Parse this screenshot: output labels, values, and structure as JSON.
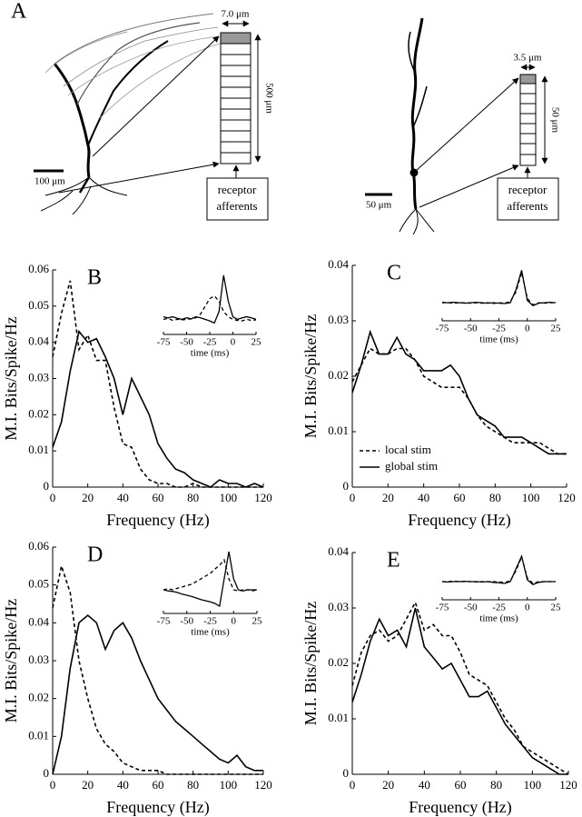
{
  "diagram": {
    "label": "A",
    "left": {
      "width_label": "7.0 μm",
      "height_label": "500 μm",
      "scale_label": "100 μm",
      "box_label": [
        "receptor",
        "afferents"
      ]
    },
    "right": {
      "width_label": "3.5 μm",
      "height_label": "50 μm",
      "scale_label": "50 μm",
      "box_label": [
        "receptor",
        "afferents"
      ]
    }
  },
  "chart_data": [
    {
      "type": "line",
      "label": "B",
      "xlabel": "Frequency (Hz)",
      "ylabel": "M.I. Bits/Spike/Hz",
      "x": [
        0,
        5,
        10,
        15,
        20,
        25,
        30,
        35,
        40,
        45,
        50,
        55,
        60,
        65,
        70,
        75,
        80,
        85,
        90,
        95,
        100,
        105,
        110,
        115,
        120
      ],
      "xlim": [
        0,
        120
      ],
      "xticks": [
        0,
        20,
        40,
        60,
        80,
        100,
        120
      ],
      "ylim": [
        0,
        0.06
      ],
      "yticks": [
        0,
        0.01,
        0.02,
        0.03,
        0.04,
        0.05,
        0.06
      ],
      "series": [
        {
          "style": "dashed",
          "color": "#000000",
          "values": [
            0.036,
            0.048,
            0.057,
            0.038,
            0.042,
            0.035,
            0.035,
            0.022,
            0.012,
            0.011,
            0.005,
            0.002,
            0.001,
            0.001,
            0,
            0,
            0.001,
            0,
            0,
            0,
            0,
            0,
            0,
            0,
            0
          ]
        },
        {
          "style": "solid",
          "color": "#000000",
          "values": [
            0.011,
            0.018,
            0.032,
            0.043,
            0.04,
            0.041,
            0.036,
            0.03,
            0.02,
            0.03,
            0.025,
            0.02,
            0.012,
            0.008,
            0.005,
            0.004,
            0.002,
            0.001,
            0,
            0.002,
            0.001,
            0.001,
            0,
            0.001,
            0
          ]
        }
      ],
      "inset": {
        "type": "line",
        "xlabel": "time (ms)",
        "x": [
          -75,
          -70,
          -65,
          -60,
          -55,
          -50,
          -45,
          -40,
          -35,
          -30,
          -25,
          -20,
          -15,
          -10,
          -5,
          0,
          5,
          10,
          15,
          20,
          25
        ],
        "xlim": [
          -75,
          25
        ],
        "xticks": [
          -75,
          -50,
          -25,
          0,
          25
        ],
        "ylim": [
          0,
          1.05
        ],
        "series": [
          {
            "style": "dashed",
            "color": "#000000",
            "values": [
              0.15,
              0.17,
              0.13,
              0.15,
              0.14,
              0.15,
              0.16,
              0.18,
              0.25,
              0.4,
              0.55,
              0.6,
              0.5,
              0.3,
              0.2,
              0.15,
              0.13,
              0.12,
              0.15,
              0.13,
              0.14
            ]
          },
          {
            "style": "solid",
            "color": "#000000",
            "values": [
              0.2,
              0.18,
              0.2,
              0.17,
              0.15,
              0.18,
              0.16,
              0.2,
              0.18,
              0.15,
              0.12,
              0.08,
              0.3,
              1.0,
              0.5,
              0.2,
              0.15,
              0.18,
              0.2,
              0.18,
              0.15
            ]
          }
        ]
      }
    },
    {
      "type": "line",
      "label": "C",
      "xlabel": "Frequency (Hz)",
      "ylabel": "M.I. Bits/Spike/Hz",
      "legend": true,
      "x": [
        0,
        5,
        10,
        15,
        20,
        25,
        30,
        35,
        40,
        45,
        50,
        55,
        60,
        65,
        70,
        75,
        80,
        85,
        90,
        95,
        100,
        105,
        110,
        115,
        120
      ],
      "xlim": [
        0,
        120
      ],
      "xticks": [
        0,
        20,
        40,
        60,
        80,
        100,
        120
      ],
      "ylim": [
        0,
        0.04
      ],
      "yticks": [
        0,
        0.01,
        0.02,
        0.03,
        0.04
      ],
      "series": [
        {
          "name": "local stim",
          "style": "dashed",
          "color": "#000000",
          "values": [
            0.019,
            0.022,
            0.025,
            0.024,
            0.024,
            0.025,
            0.025,
            0.023,
            0.02,
            0.019,
            0.018,
            0.018,
            0.018,
            0.016,
            0.013,
            0.011,
            0.01,
            0.009,
            0.008,
            0.008,
            0.008,
            0.008,
            0.007,
            0.006,
            0.006
          ]
        },
        {
          "name": "global stim",
          "style": "solid",
          "color": "#000000",
          "values": [
            0.017,
            0.022,
            0.028,
            0.024,
            0.024,
            0.027,
            0.024,
            0.023,
            0.021,
            0.021,
            0.021,
            0.022,
            0.02,
            0.016,
            0.013,
            0.012,
            0.011,
            0.009,
            0.009,
            0.009,
            0.008,
            0.007,
            0.006,
            0.006,
            0.006
          ]
        }
      ],
      "inset": {
        "type": "line",
        "xlabel": "time (ms)",
        "x": [
          -75,
          -70,
          -65,
          -60,
          -55,
          -50,
          -45,
          -40,
          -35,
          -30,
          -25,
          -20,
          -15,
          -10,
          -5,
          0,
          5,
          10,
          15,
          20,
          25
        ],
        "xlim": [
          -75,
          25
        ],
        "xticks": [
          -75,
          -50,
          -25,
          0,
          25
        ],
        "ylim": [
          0,
          1.05
        ],
        "series": [
          {
            "style": "dashed",
            "color": "#000000",
            "values": [
              0.25,
              0.25,
              0.24,
              0.25,
              0.25,
              0.24,
              0.25,
              0.24,
              0.25,
              0.23,
              0.25,
              0.24,
              0.28,
              0.5,
              0.95,
              0.35,
              0.2,
              0.25,
              0.24,
              0.25,
              0.25
            ]
          },
          {
            "style": "solid",
            "color": "#000000",
            "values": [
              0.26,
              0.25,
              0.26,
              0.25,
              0.24,
              0.25,
              0.26,
              0.25,
              0.24,
              0.25,
              0.24,
              0.23,
              0.25,
              0.55,
              1.0,
              0.3,
              0.18,
              0.24,
              0.25,
              0.26,
              0.25
            ]
          }
        ]
      }
    },
    {
      "type": "line",
      "label": "D",
      "xlabel": "Frequency (Hz)",
      "ylabel": "M.I. Bits/Spike/Hz",
      "x": [
        0,
        5,
        10,
        15,
        20,
        25,
        30,
        35,
        40,
        45,
        50,
        55,
        60,
        65,
        70,
        75,
        80,
        85,
        90,
        95,
        100,
        105,
        110,
        115,
        120
      ],
      "xlim": [
        0,
        120
      ],
      "xticks": [
        0,
        20,
        40,
        60,
        80,
        100,
        120
      ],
      "ylim": [
        0,
        0.06
      ],
      "yticks": [
        0,
        0.01,
        0.02,
        0.03,
        0.04,
        0.05,
        0.06
      ],
      "series": [
        {
          "style": "dashed",
          "color": "#000000",
          "values": [
            0.044,
            0.055,
            0.048,
            0.03,
            0.02,
            0.012,
            0.008,
            0.006,
            0.003,
            0.002,
            0.001,
            0.001,
            0.001,
            0,
            0,
            0,
            0,
            0,
            0,
            0,
            0,
            0,
            0,
            0,
            0
          ]
        },
        {
          "style": "solid",
          "color": "#000000",
          "values": [
            0,
            0.01,
            0.028,
            0.04,
            0.042,
            0.04,
            0.033,
            0.038,
            0.04,
            0.036,
            0.03,
            0.025,
            0.02,
            0.017,
            0.014,
            0.012,
            0.01,
            0.008,
            0.006,
            0.004,
            0.003,
            0.005,
            0.002,
            0.001,
            0.001
          ]
        }
      ],
      "inset": {
        "type": "line",
        "xlabel": "time (ms)",
        "x": [
          -75,
          -70,
          -65,
          -60,
          -55,
          -50,
          -45,
          -40,
          -35,
          -30,
          -25,
          -20,
          -15,
          -10,
          -5,
          0,
          5,
          10,
          15,
          20,
          25
        ],
        "xlim": [
          -75,
          25
        ],
        "xticks": [
          -75,
          -50,
          -25,
          0,
          25
        ],
        "ylim": [
          0,
          1.05
        ],
        "series": [
          {
            "style": "dashed",
            "color": "#000000",
            "values": [
              0.3,
              0.32,
              0.3,
              0.33,
              0.35,
              0.38,
              0.4,
              0.45,
              0.5,
              0.55,
              0.6,
              0.68,
              0.75,
              0.85,
              0.5,
              0.3,
              0.28,
              0.3,
              0.3,
              0.28,
              0.3
            ]
          },
          {
            "style": "solid",
            "color": "#000000",
            "values": [
              0.3,
              0.28,
              0.27,
              0.25,
              0.22,
              0.2,
              0.18,
              0.15,
              0.12,
              0.1,
              0.08,
              0.05,
              0,
              0.5,
              1.0,
              0.5,
              0.3,
              0.28,
              0.3,
              0.3,
              0.3
            ]
          }
        ]
      }
    },
    {
      "type": "line",
      "label": "E",
      "xlabel": "Frequency (Hz)",
      "ylabel": "M.I. Bits/Spike/Hz",
      "x": [
        0,
        5,
        10,
        15,
        20,
        25,
        30,
        35,
        40,
        45,
        50,
        55,
        60,
        65,
        70,
        75,
        80,
        85,
        90,
        95,
        100,
        105,
        110,
        115,
        120
      ],
      "xlim": [
        0,
        120
      ],
      "xticks": [
        0,
        20,
        40,
        60,
        80,
        100,
        120
      ],
      "ylim": [
        0,
        0.04
      ],
      "yticks": [
        0,
        0.01,
        0.02,
        0.03,
        0.04
      ],
      "series": [
        {
          "style": "dashed",
          "color": "#000000",
          "values": [
            0.016,
            0.022,
            0.025,
            0.026,
            0.024,
            0.025,
            0.028,
            0.031,
            0.026,
            0.027,
            0.025,
            0.025,
            0.022,
            0.018,
            0.017,
            0.016,
            0.013,
            0.01,
            0.008,
            0.005,
            0.004,
            0.003,
            0.002,
            0.001,
            0
          ]
        },
        {
          "style": "solid",
          "color": "#000000",
          "values": [
            0.013,
            0.018,
            0.024,
            0.028,
            0.025,
            0.026,
            0.023,
            0.03,
            0.023,
            0.021,
            0.019,
            0.02,
            0.017,
            0.014,
            0.014,
            0.015,
            0.012,
            0.009,
            0.007,
            0.005,
            0.003,
            0.002,
            0.001,
            0,
            0
          ]
        }
      ],
      "inset": {
        "type": "line",
        "xlabel": "time (ms)",
        "x": [
          -75,
          -70,
          -65,
          -60,
          -55,
          -50,
          -45,
          -40,
          -35,
          -30,
          -25,
          -20,
          -15,
          -10,
          -5,
          0,
          5,
          10,
          15,
          20,
          25
        ],
        "xlim": [
          -75,
          25
        ],
        "xticks": [
          -75,
          -50,
          -25,
          0,
          25
        ],
        "ylim": [
          0,
          1.05
        ],
        "series": [
          {
            "style": "dashed",
            "color": "#000000",
            "values": [
              0.3,
              0.3,
              0.31,
              0.3,
              0.3,
              0.3,
              0.29,
              0.3,
              0.3,
              0.3,
              0.29,
              0.28,
              0.32,
              0.6,
              0.98,
              0.4,
              0.25,
              0.3,
              0.3,
              0.3,
              0.3
            ]
          },
          {
            "style": "solid",
            "color": "#000000",
            "values": [
              0.3,
              0.29,
              0.3,
              0.3,
              0.31,
              0.3,
              0.3,
              0.29,
              0.3,
              0.28,
              0.27,
              0.25,
              0.3,
              0.65,
              1.0,
              0.35,
              0.22,
              0.28,
              0.3,
              0.3,
              0.3
            ]
          }
        ]
      }
    }
  ]
}
